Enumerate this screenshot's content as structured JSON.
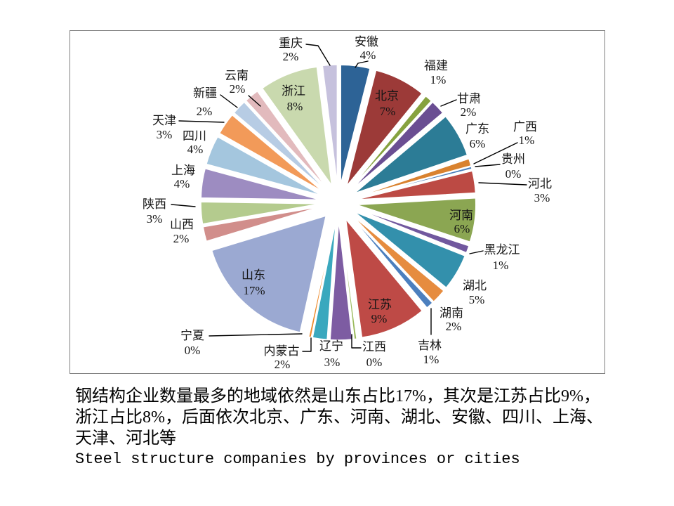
{
  "chart_data": {
    "type": "pie",
    "variant": "exploded",
    "title": "Steel structure companies by provinces or cities",
    "unit": "%",
    "legend": "none",
    "label_style": "name-and-percent",
    "inside_labels": [
      "北京",
      "河南",
      "江苏",
      "山东",
      "浙江"
    ],
    "slices": [
      {
        "name": "安徽",
        "value": 4,
        "label": "4%",
        "color": "#2D6396"
      },
      {
        "name": "北京",
        "value": 7,
        "label": "7%",
        "color": "#9C3A38"
      },
      {
        "name": "福建",
        "value": 1,
        "label": "1%",
        "color": "#86A23F"
      },
      {
        "name": "甘肃",
        "value": 2,
        "label": "2%",
        "color": "#6A4E92"
      },
      {
        "name": "广东",
        "value": 6,
        "label": "6%",
        "color": "#2C7C96"
      },
      {
        "name": "广西",
        "value": 1,
        "label": "1%",
        "color": "#D9822F"
      },
      {
        "name": "贵州",
        "value": 0,
        "label": "0%",
        "color": "#4A7EBB"
      },
      {
        "name": "河北",
        "value": 3,
        "label": "3%",
        "color": "#BC4A44"
      },
      {
        "name": "河南",
        "value": 6,
        "label": "6%",
        "color": "#8BA652"
      },
      {
        "name": "黑龙江",
        "value": 1,
        "label": "1%",
        "color": "#71589E"
      },
      {
        "name": "湖北",
        "value": 5,
        "label": "5%",
        "color": "#3390AC"
      },
      {
        "name": "湖南",
        "value": 2,
        "label": "2%",
        "color": "#E68C3F"
      },
      {
        "name": "吉林",
        "value": 1,
        "label": "1%",
        "color": "#4C7FBE"
      },
      {
        "name": "江苏",
        "value": 9,
        "label": "9%",
        "color": "#BE4A46"
      },
      {
        "name": "江西",
        "value": 0,
        "label": "0%",
        "color": "#9CBB5F"
      },
      {
        "name": "辽宁",
        "value": 3,
        "label": "3%",
        "color": "#7D5CA2"
      },
      {
        "name": "内蒙古",
        "value": 2,
        "label": "2%",
        "color": "#3AA8BE"
      },
      {
        "name": "宁夏",
        "value": 0,
        "label": "0%",
        "color": "#EE8B2D"
      },
      {
        "name": "山东",
        "value": 17,
        "label": "17%",
        "color": "#9BA9D2"
      },
      {
        "name": "山西",
        "value": 2,
        "label": "2%",
        "color": "#D18E8B"
      },
      {
        "name": "陕西",
        "value": 3,
        "label": "3%",
        "color": "#B4CB8E"
      },
      {
        "name": "上海",
        "value": 4,
        "label": "4%",
        "color": "#9D8CC1"
      },
      {
        "name": "四川",
        "value": 4,
        "label": "4%",
        "color": "#A4C6DE"
      },
      {
        "name": "天津",
        "value": 3,
        "label": "3%",
        "color": "#F29A59"
      },
      {
        "name": "新疆",
        "value": 2,
        "label": "2%",
        "color": "#B7CCE4"
      },
      {
        "name": "云南",
        "value": 2,
        "label": "2%",
        "color": "#E2BABD"
      },
      {
        "name": "浙江",
        "value": 8,
        "label": "8%",
        "color": "#C9D9AE"
      },
      {
        "name": "重庆",
        "value": 2,
        "label": "2%",
        "color": "#C6C1DD"
      }
    ]
  },
  "caption": {
    "line1": "钢结构企业数量最多的地域依然是山东占比17%，其次是江苏占比9%，",
    "line2": "浙江占比8%，后面依次北京、广东、河南、湖北、安徽、四川、上海、",
    "line3": "天津、河北等",
    "title_en": "Steel structure companies by provinces or cities"
  }
}
